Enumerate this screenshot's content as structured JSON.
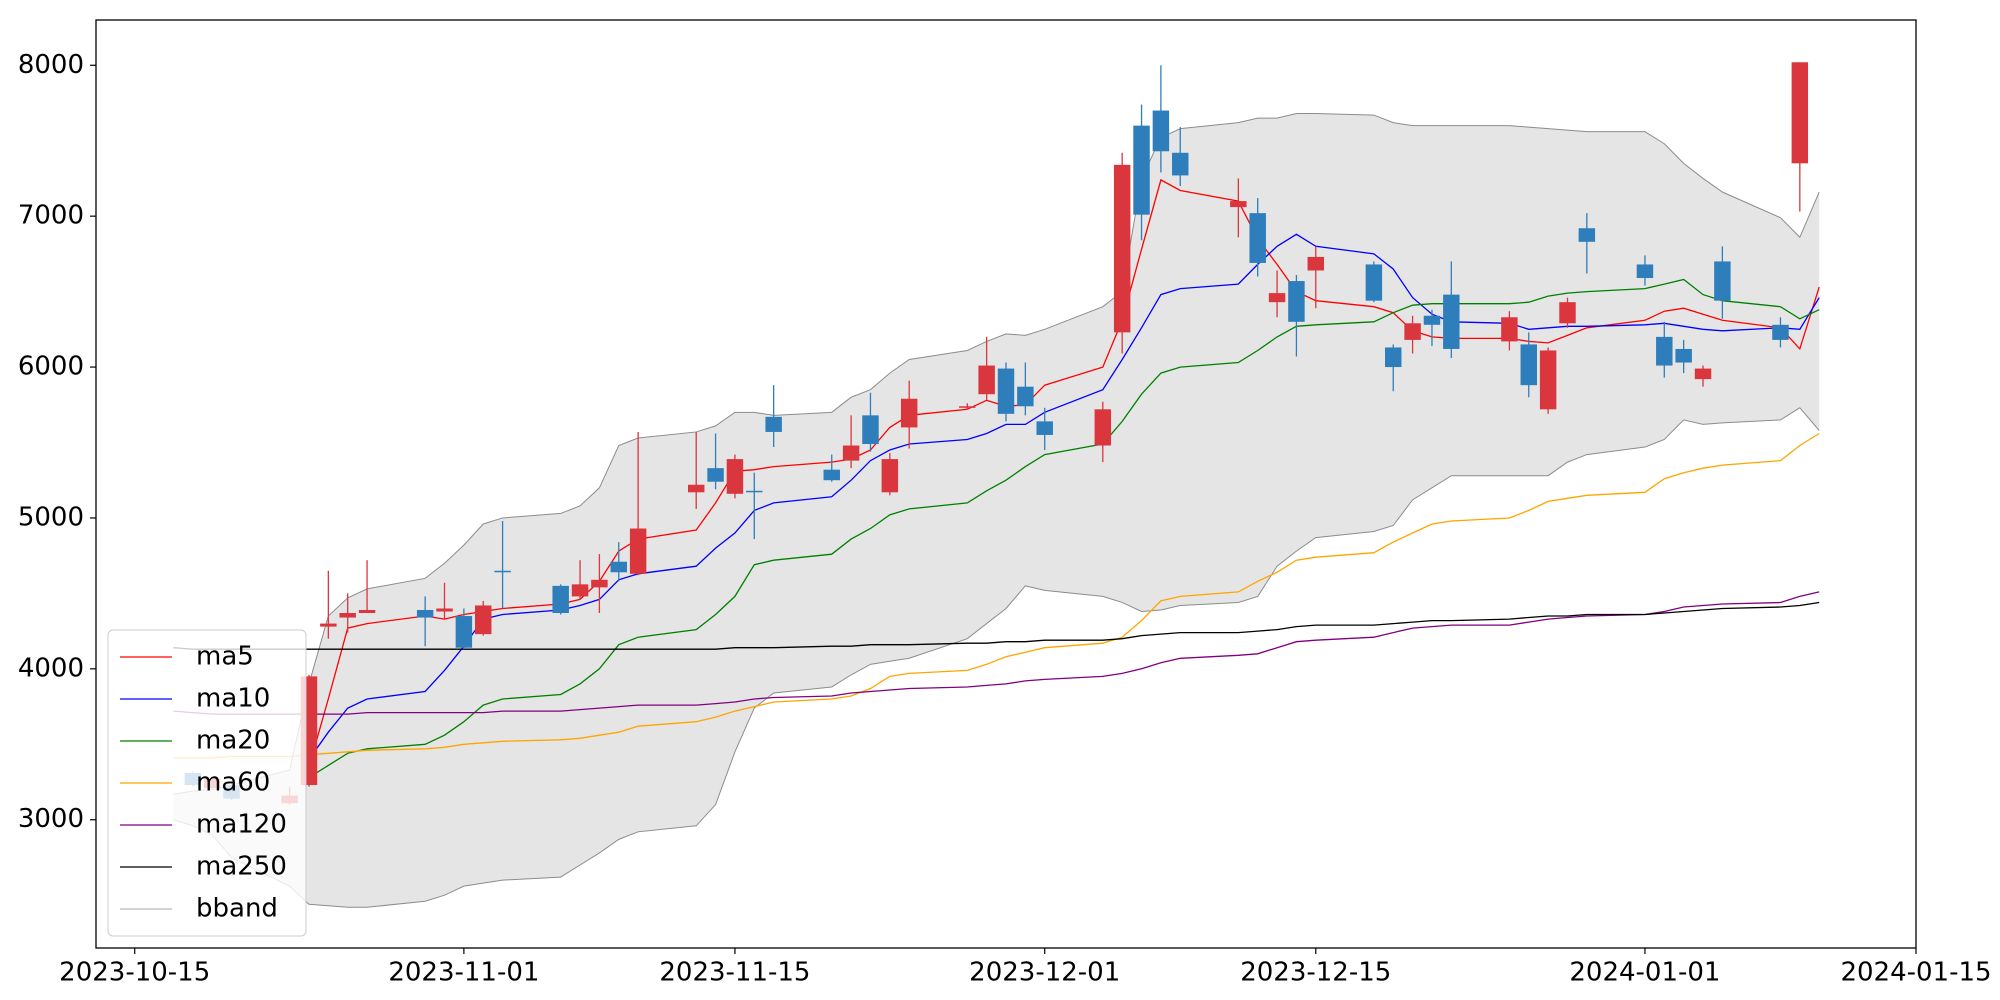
{
  "chart_data": {
    "type": "candlestick",
    "x": [
      "2023-10-17",
      "2023-10-18",
      "2023-10-19",
      "2023-10-20",
      "2023-10-23",
      "2023-10-24",
      "2023-10-25",
      "2023-10-26",
      "2023-10-27",
      "2023-10-30",
      "2023-10-31",
      "2023-11-01",
      "2023-11-02",
      "2023-11-03",
      "2023-11-06",
      "2023-11-07",
      "2023-11-08",
      "2023-11-09",
      "2023-11-10",
      "2023-11-13",
      "2023-11-14",
      "2023-11-15",
      "2023-11-16",
      "2023-11-17",
      "2023-11-20",
      "2023-11-21",
      "2023-11-22",
      "2023-11-23",
      "2023-11-24",
      "2023-11-27",
      "2023-11-28",
      "2023-11-29",
      "2023-11-30",
      "2023-12-01",
      "2023-12-04",
      "2023-12-05",
      "2023-12-06",
      "2023-12-07",
      "2023-12-08",
      "2023-12-11",
      "2023-12-12",
      "2023-12-13",
      "2023-12-14",
      "2023-12-15",
      "2023-12-18",
      "2023-12-19",
      "2023-12-20",
      "2023-12-21",
      "2023-12-22",
      "2023-12-25",
      "2023-12-26",
      "2023-12-27",
      "2023-12-28",
      "2023-12-29",
      "2024-01-01",
      "2024-01-02",
      "2024-01-03",
      "2024-01-04",
      "2024-01-05",
      "2024-01-08",
      "2024-01-09",
      "2024-01-10"
    ],
    "open": [
      null,
      3310,
      3210,
      3230,
      3110,
      3230,
      4280,
      4340,
      4370,
      4390,
      4380,
      4350,
      4230,
      4650,
      4550,
      4480,
      4540,
      4710,
      4630,
      5170,
      5330,
      5160,
      5180,
      5670,
      5320,
      5380,
      5680,
      5170,
      5600,
      5730,
      5820,
      5990,
      5870,
      5640,
      5480,
      6230,
      7600,
      7700,
      7420,
      7060,
      7020,
      6430,
      6570,
      6640,
      6680,
      6130,
      6180,
      6340,
      6480,
      6170,
      6150,
      5720,
      6290,
      6920,
      6680,
      6200,
      6120,
      5920,
      6700,
      6280,
      7350,
      null
    ],
    "high": [
      null,
      3320,
      3280,
      3240,
      3220,
      3960,
      4650,
      4500,
      4720,
      4480,
      4570,
      4400,
      4450,
      4980,
      4560,
      4720,
      4760,
      4840,
      5570,
      5570,
      5560,
      5420,
      5300,
      5880,
      5420,
      5680,
      5830,
      5430,
      5910,
      5760,
      6200,
      6030,
      6030,
      5730,
      5770,
      7420,
      7740,
      8000,
      7590,
      7250,
      7120,
      6640,
      6610,
      6800,
      6700,
      6150,
      6340,
      6380,
      6700,
      6370,
      6230,
      6130,
      6460,
      7020,
      6740,
      6300,
      6180,
      6010,
      6800,
      6330,
      8020,
      null
    ],
    "low": [
      null,
      3220,
      3200,
      3130,
      3100,
      3220,
      4200,
      4240,
      4370,
      4150,
      4330,
      4130,
      4220,
      4400,
      4360,
      4460,
      4370,
      4580,
      4620,
      5060,
      5190,
      5130,
      4860,
      5470,
      5240,
      5330,
      5440,
      5150,
      5460,
      5720,
      5780,
      5640,
      5680,
      5450,
      5370,
      6090,
      6840,
      7290,
      7200,
      6860,
      6600,
      6330,
      6070,
      6390,
      6430,
      5840,
      6090,
      6140,
      6060,
      6110,
      5800,
      5690,
      6260,
      6620,
      6540,
      5930,
      5960,
      5870,
      6320,
      6130,
      7030,
      null
    ],
    "close": [
      null,
      3230,
      3270,
      3140,
      3160,
      3950,
      4300,
      4370,
      4390,
      4340,
      4400,
      4140,
      4420,
      4640,
      4370,
      4560,
      4590,
      4640,
      4930,
      5220,
      5240,
      5390,
      5170,
      5570,
      5250,
      5480,
      5490,
      5390,
      5790,
      5740,
      6010,
      5690,
      5740,
      5550,
      5720,
      7340,
      7010,
      7430,
      7270,
      7100,
      6690,
      6490,
      6300,
      6730,
      6440,
      6000,
      6290,
      6280,
      6120,
      6330,
      5880,
      6110,
      6430,
      6830,
      6590,
      6010,
      6030,
      5990,
      6440,
      6180,
      8020,
      null
    ],
    "up_color": "#d9363e",
    "down_color": "#2e7ebc",
    "series": [
      {
        "name": "ma5",
        "color": "#ff0000",
        "values": [
          null,
          null,
          null,
          null,
          null,
          3350,
          3800,
          4270,
          4300,
          4350,
          4330,
          4360,
          4380,
          4400,
          4430,
          4460,
          4580,
          4780,
          4860,
          4920,
          5100,
          5310,
          5320,
          5340,
          5370,
          5390,
          5450,
          5600,
          5680,
          5720,
          5780,
          5740,
          5750,
          5880,
          6000,
          6310,
          6780,
          7240,
          7170,
          7100,
          6850,
          6680,
          6500,
          6440,
          6400,
          6360,
          6240,
          6200,
          6190,
          6190,
          6170,
          6160,
          6210,
          6260,
          6310,
          6370,
          6390,
          6350,
          6310,
          6260,
          6120,
          6530
        ]
      },
      {
        "name": "ma10",
        "color": "#0000ff",
        "values": [
          null,
          null,
          null,
          null,
          null,
          3400,
          3580,
          3740,
          3800,
          3850,
          3990,
          4150,
          4330,
          4360,
          4390,
          4420,
          4460,
          4590,
          4630,
          4680,
          4800,
          4900,
          5050,
          5100,
          5140,
          5250,
          5380,
          5450,
          5490,
          5520,
          5560,
          5620,
          5620,
          5700,
          5850,
          6050,
          6260,
          6480,
          6520,
          6550,
          6680,
          6800,
          6880,
          6800,
          6750,
          6650,
          6460,
          6350,
          6300,
          6290,
          6250,
          6260,
          6270,
          6270,
          6280,
          6290,
          6270,
          6250,
          6240,
          6260,
          6250,
          6460
        ]
      },
      {
        "name": "ma20",
        "color": "#008000",
        "values": [
          null,
          null,
          null,
          null,
          null,
          3280,
          3360,
          3440,
          3470,
          3500,
          3560,
          3650,
          3760,
          3800,
          3830,
          3900,
          4000,
          4160,
          4210,
          4260,
          4360,
          4480,
          4690,
          4720,
          4760,
          4860,
          4930,
          5020,
          5060,
          5100,
          5180,
          5250,
          5340,
          5420,
          5490,
          5640,
          5820,
          5960,
          6000,
          6030,
          6110,
          6200,
          6270,
          6280,
          6300,
          6360,
          6410,
          6420,
          6420,
          6420,
          6430,
          6470,
          6490,
          6500,
          6520,
          6550,
          6580,
          6480,
          6440,
          6400,
          6320,
          6380
        ]
      },
      {
        "name": "ma60",
        "color": "#ffa500",
        "values": [
          3410,
          3410,
          3410,
          3420,
          3420,
          3430,
          3440,
          3450,
          3460,
          3470,
          3480,
          3500,
          3510,
          3520,
          3530,
          3540,
          3560,
          3580,
          3620,
          3650,
          3680,
          3720,
          3750,
          3780,
          3800,
          3820,
          3870,
          3950,
          3970,
          3990,
          4030,
          4080,
          4110,
          4140,
          4170,
          4210,
          4320,
          4450,
          4480,
          4510,
          4580,
          4640,
          4720,
          4740,
          4770,
          4840,
          4900,
          4960,
          4980,
          5000,
          5050,
          5110,
          5130,
          5150,
          5170,
          5260,
          5300,
          5330,
          5350,
          5380,
          5480,
          5560
        ]
      },
      {
        "name": "ma120",
        "color": "#800080",
        "values": [
          3720,
          3710,
          3700,
          3700,
          3700,
          3700,
          3700,
          3700,
          3710,
          3710,
          3710,
          3710,
          3710,
          3720,
          3720,
          3730,
          3740,
          3750,
          3760,
          3760,
          3770,
          3780,
          3800,
          3810,
          3820,
          3840,
          3850,
          3860,
          3870,
          3880,
          3890,
          3900,
          3920,
          3930,
          3950,
          3970,
          4000,
          4040,
          4070,
          4090,
          4100,
          4140,
          4180,
          4190,
          4210,
          4240,
          4270,
          4280,
          4290,
          4290,
          4310,
          4330,
          4340,
          4350,
          4360,
          4380,
          4410,
          4420,
          4430,
          4440,
          4480,
          4510
        ]
      },
      {
        "name": "ma250",
        "color": "#000000",
        "values": [
          4140,
          4130,
          4130,
          4130,
          4130,
          4130,
          4130,
          4130,
          4130,
          4130,
          4130,
          4130,
          4130,
          4130,
          4130,
          4130,
          4130,
          4130,
          4130,
          4130,
          4130,
          4140,
          4140,
          4140,
          4150,
          4150,
          4160,
          4160,
          4160,
          4170,
          4170,
          4180,
          4180,
          4190,
          4190,
          4200,
          4220,
          4230,
          4240,
          4240,
          4250,
          4260,
          4280,
          4290,
          4290,
          4300,
          4310,
          4320,
          4320,
          4330,
          4340,
          4350,
          4350,
          4360,
          4360,
          4370,
          4380,
          4390,
          4400,
          4410,
          4420,
          4440
        ]
      }
    ],
    "bands": {
      "name": "bband",
      "color": "#8c8c8c",
      "fill": "#e5e5e5",
      "upper": [
        3170,
        3190,
        3200,
        3230,
        3330,
        3900,
        4350,
        4470,
        4530,
        4600,
        4700,
        4820,
        4960,
        5000,
        5030,
        5080,
        5200,
        5480,
        5530,
        5570,
        5610,
        5700,
        5700,
        5680,
        5700,
        5800,
        5850,
        5960,
        6050,
        6110,
        6170,
        6220,
        6210,
        6250,
        6400,
        6500,
        7250,
        7520,
        7580,
        7620,
        7650,
        7650,
        7680,
        7680,
        7670,
        7620,
        7600,
        7600,
        7600,
        7600,
        7590,
        7580,
        7570,
        7560,
        7560,
        7480,
        7350,
        7250,
        7160,
        6990,
        6860,
        7160
      ],
      "lower": [
        3000,
        2960,
        2900,
        2750,
        2560,
        2440,
        2430,
        2420,
        2420,
        2460,
        2500,
        2560,
        2580,
        2600,
        2620,
        2700,
        2780,
        2870,
        2920,
        2960,
        3100,
        3450,
        3740,
        3840,
        3880,
        3960,
        4030,
        4050,
        4070,
        4200,
        4300,
        4400,
        4550,
        4520,
        4480,
        4440,
        4380,
        4390,
        4420,
        4440,
        4480,
        4680,
        4780,
        4870,
        4910,
        4950,
        5120,
        5200,
        5280,
        5280,
        5280,
        5280,
        5370,
        5420,
        5470,
        5520,
        5650,
        5620,
        5630,
        5650,
        5730,
        5580
      ]
    },
    "xlim": [
      "2023-10-13",
      "2024-01-15"
    ],
    "xticks": [
      "2023-10-15",
      "2023-11-01",
      "2023-11-15",
      "2023-12-01",
      "2023-12-15",
      "2024-01-01",
      "2024-01-15"
    ],
    "ylim": [
      2150,
      8300
    ],
    "yticks": [
      3000,
      4000,
      5000,
      6000,
      7000,
      8000
    ],
    "legend": "lower left"
  }
}
